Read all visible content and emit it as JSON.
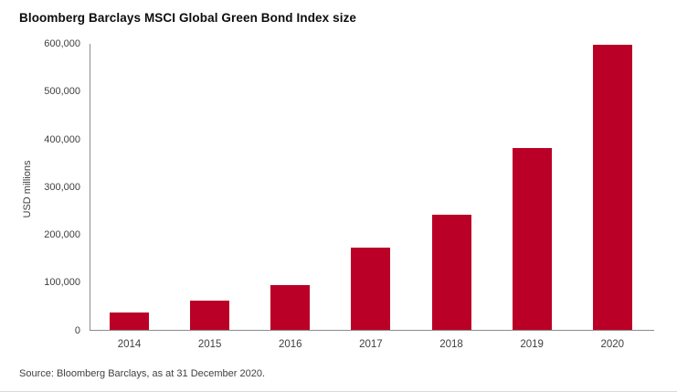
{
  "page": {
    "title": "Bloomberg Barclays MSCI Global Green Bond Index size",
    "source_note": "Source: Bloomberg Barclays, as at 31 December 2020."
  },
  "colors": {
    "bar": "#ba0026",
    "axis_line": "#8c8c8c",
    "tick_text": "#404040",
    "title_text": "#0d0d0d",
    "divider": "#d9d9d9"
  },
  "chart_data": {
    "type": "bar",
    "title": "Bloomberg Barclays MSCI Global Green Bond Index size",
    "categories": [
      "2014",
      "2015",
      "2016",
      "2017",
      "2018",
      "2019",
      "2020"
    ],
    "values": [
      37000,
      62000,
      95000,
      173000,
      243000,
      381000,
      598000
    ],
    "xlabel": "",
    "ylabel": "USD millions",
    "ylim": [
      0,
      600000
    ],
    "ytick_interval": 100000,
    "ytick_labels": [
      "0",
      "100,000",
      "200,000",
      "300,000",
      "400,000",
      "500,000",
      "600,000"
    ],
    "grid": false,
    "legend": false
  }
}
